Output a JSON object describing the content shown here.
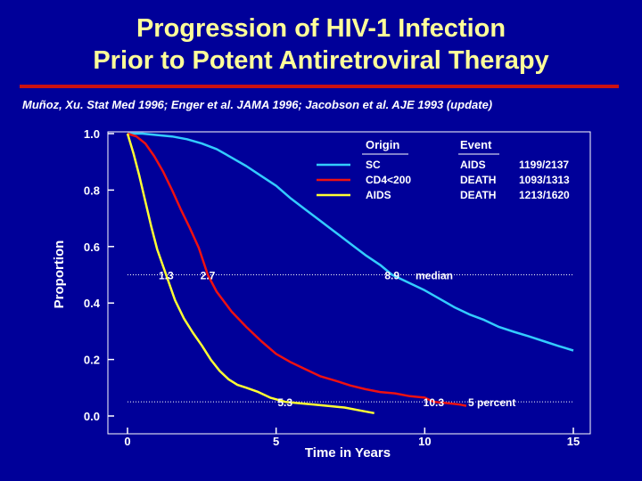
{
  "header": {
    "title_line1": "Progression of HIV-1 Infection",
    "title_line2": "Prior to Potent Antiretroviral Therapy",
    "citation": "Muñoz, Xu.  Stat Med 1996;  Enger et al.  JAMA 1996;  Jacobson et al.  AJE 1993 (update)"
  },
  "colors": {
    "background": "#000099",
    "title": "#ffff99",
    "rule": "#cc1111",
    "sc": "#33ccff",
    "cd4": "#ee1111",
    "aids": "#ffff33",
    "reference": "#ffffff"
  },
  "chart_data": {
    "type": "line",
    "title": "",
    "xlabel": "Time in Years",
    "ylabel": "Proportion",
    "xlim": [
      0,
      15
    ],
    "ylim": [
      0,
      1
    ],
    "xticks": [
      {
        "value": 0,
        "label": "0"
      },
      {
        "value": 5,
        "label": "5"
      },
      {
        "value": 10,
        "label": "10"
      },
      {
        "value": 15,
        "label": "15"
      }
    ],
    "yticks": [
      {
        "value": 0.0,
        "label": "0.0"
      },
      {
        "value": 0.2,
        "label": "0.2"
      },
      {
        "value": 0.4,
        "label": "0.4"
      },
      {
        "value": 0.6,
        "label": "0.6"
      },
      {
        "value": 0.8,
        "label": "0.8"
      },
      {
        "value": 1.0,
        "label": "1.0"
      }
    ],
    "legend": {
      "placement": "top-right",
      "origin_header": "Origin",
      "event_header": "Event",
      "rows": [
        {
          "origin": "SC",
          "event": "AIDS",
          "count": "1199/2137",
          "color": "#33ccff"
        },
        {
          "origin": "CD4<200",
          "event": "DEATH",
          "count": "1093/1313",
          "color": "#ee1111"
        },
        {
          "origin": "AIDS",
          "event": "DEATH",
          "count": "1213/1620",
          "color": "#ffff33"
        }
      ]
    },
    "series": [
      {
        "name": "SC",
        "color": "#33ccff",
        "x": [
          0,
          0.5,
          1,
          1.5,
          2,
          2.5,
          3,
          3.5,
          4,
          4.5,
          5,
          5.5,
          6,
          6.5,
          7,
          7.5,
          8,
          8.5,
          8.9,
          9.5,
          10,
          10.5,
          11,
          11.5,
          12,
          12.5,
          13,
          13.5,
          14,
          14.5,
          15
        ],
        "y": [
          1.0,
          1.0,
          0.995,
          0.99,
          0.98,
          0.965,
          0.945,
          0.915,
          0.885,
          0.85,
          0.815,
          0.77,
          0.73,
          0.69,
          0.65,
          0.61,
          0.57,
          0.535,
          0.5,
          0.47,
          0.445,
          0.415,
          0.385,
          0.36,
          0.34,
          0.315,
          0.298,
          0.282,
          0.265,
          0.248,
          0.232
        ]
      },
      {
        "name": "CD4<200",
        "color": "#ee1111",
        "x": [
          0,
          0.3,
          0.6,
          0.9,
          1.2,
          1.5,
          1.8,
          2.1,
          2.4,
          2.7,
          3.0,
          3.5,
          4.0,
          4.5,
          5.0,
          5.5,
          6.0,
          6.5,
          7.0,
          7.5,
          8.0,
          8.5,
          9.0,
          9.5,
          10.0,
          10.3,
          10.8,
          11.2,
          11.4
        ],
        "y": [
          1.0,
          0.99,
          0.965,
          0.92,
          0.865,
          0.8,
          0.73,
          0.665,
          0.595,
          0.5,
          0.44,
          0.37,
          0.315,
          0.265,
          0.22,
          0.19,
          0.165,
          0.14,
          0.125,
          0.108,
          0.095,
          0.085,
          0.08,
          0.07,
          0.065,
          0.05,
          0.045,
          0.04,
          0.036
        ]
      },
      {
        "name": "AIDS",
        "color": "#ffff33",
        "x": [
          0,
          0.2,
          0.4,
          0.6,
          0.8,
          1.0,
          1.3,
          1.6,
          1.9,
          2.2,
          2.5,
          2.8,
          3.1,
          3.4,
          3.7,
          4.0,
          4.4,
          4.8,
          5.3,
          5.8,
          6.3,
          6.8,
          7.3,
          7.8,
          8.3
        ],
        "y": [
          1.0,
          0.93,
          0.85,
          0.76,
          0.67,
          0.59,
          0.5,
          0.41,
          0.345,
          0.295,
          0.25,
          0.2,
          0.16,
          0.13,
          0.11,
          0.1,
          0.085,
          0.065,
          0.05,
          0.045,
          0.04,
          0.035,
          0.03,
          0.02,
          0.01
        ]
      }
    ],
    "reference_lines": [
      {
        "y": 0.5,
        "label": "median"
      },
      {
        "y": 0.05,
        "label": "5 percent"
      }
    ],
    "annotations": [
      {
        "x": 1.3,
        "y": 0.5,
        "text": "1.3"
      },
      {
        "x": 2.7,
        "y": 0.5,
        "text": "2.7"
      },
      {
        "x": 8.9,
        "y": 0.5,
        "text": "8.9"
      },
      {
        "x": 5.3,
        "y": 0.05,
        "text": "5.3"
      },
      {
        "x": 10.3,
        "y": 0.05,
        "text": "10.3"
      }
    ]
  }
}
